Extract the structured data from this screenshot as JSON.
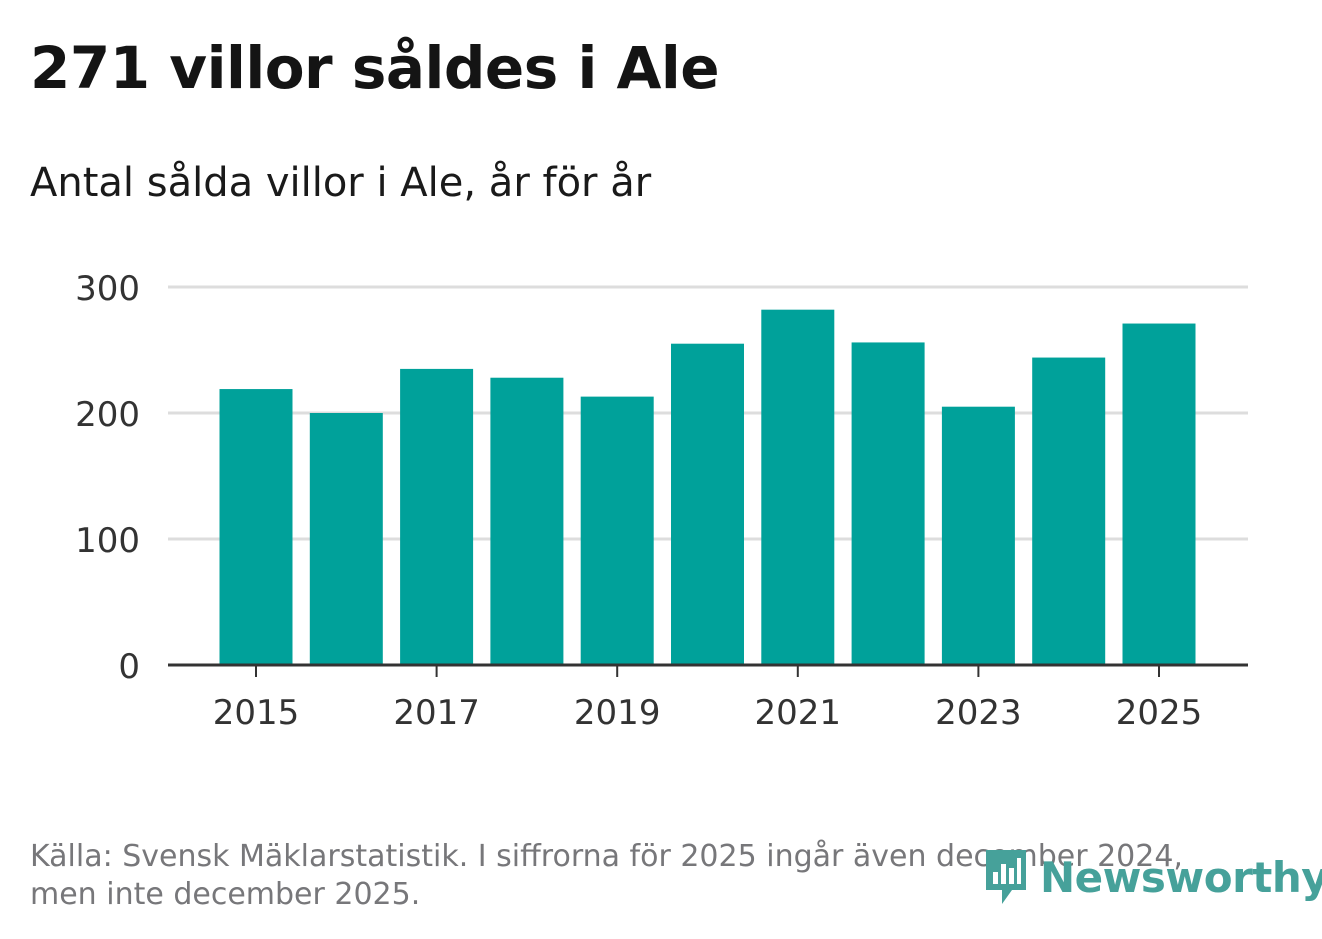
{
  "header": {
    "title": "271 villor såldes i Ale",
    "subtitle": "Antal sålda villor i Ale, år för år"
  },
  "footer": {
    "source": "Källa: Svensk Mäklarstatistik. I siffrorna för 2025 ingår även december 2024, men inte december 2025."
  },
  "brand": {
    "name": "Newsworthy",
    "logo_icon": "newsworthy-chart-bubble-icon",
    "color": "#46a19a"
  },
  "colors": {
    "bar": "#00a19a",
    "grid": "#dddddd",
    "axis": "#333333",
    "tick_text": "#333333"
  },
  "chart_data": {
    "type": "bar",
    "title": "Antal sålda villor i Ale, år för år",
    "categories": [
      "2015",
      "2016",
      "2017",
      "2018",
      "2019",
      "2020",
      "2021",
      "2022",
      "2023",
      "2024",
      "2025"
    ],
    "values": [
      219,
      200,
      235,
      228,
      213,
      255,
      282,
      256,
      205,
      244,
      271
    ],
    "x_tick_labels": [
      "2015",
      "2017",
      "2019",
      "2021",
      "2023",
      "2025"
    ],
    "y_ticks": [
      0,
      100,
      200,
      300
    ],
    "y_tick_labels": [
      "0",
      "100",
      "200",
      "300"
    ],
    "ylim": [
      0,
      300
    ],
    "xlabel": "",
    "ylabel": "",
    "grid": true
  }
}
